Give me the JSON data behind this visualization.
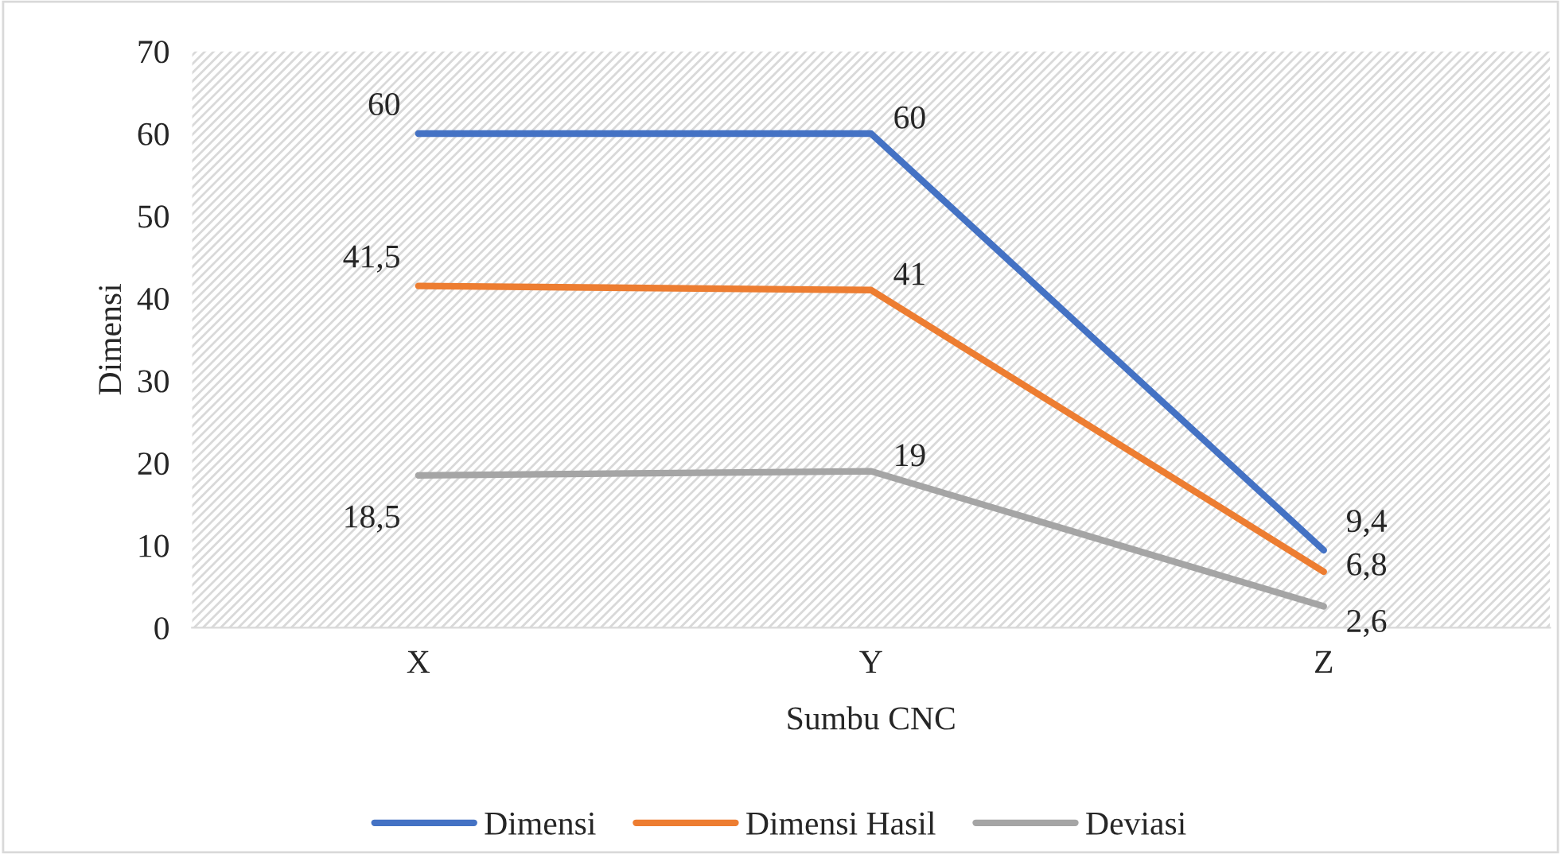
{
  "chart_data": {
    "type": "line",
    "xlabel": "Sumbu CNC",
    "ylabel": "Dimensi",
    "categories": [
      "X",
      "Y",
      "Z"
    ],
    "series": [
      {
        "name": "Dimensi",
        "color": "#4472c4",
        "values": [
          60,
          60,
          9.4
        ],
        "value_labels": [
          "60",
          "60",
          "9,4"
        ]
      },
      {
        "name": "Dimensi Hasil",
        "color": "#ed7d31",
        "values": [
          41.5,
          41,
          6.8
        ],
        "value_labels": [
          "41,5",
          "41",
          "6,8"
        ]
      },
      {
        "name": "Deviasi",
        "color": "#a5a5a5",
        "values": [
          18.5,
          19,
          2.6
        ],
        "value_labels": [
          "18,5",
          "19",
          "2,6"
        ]
      }
    ],
    "ylim": [
      0,
      70
    ],
    "yticks": [
      0,
      10,
      20,
      30,
      40,
      50,
      60,
      70
    ],
    "legend": "bottom",
    "grid": false,
    "marker": "none",
    "line_style": "solid"
  }
}
